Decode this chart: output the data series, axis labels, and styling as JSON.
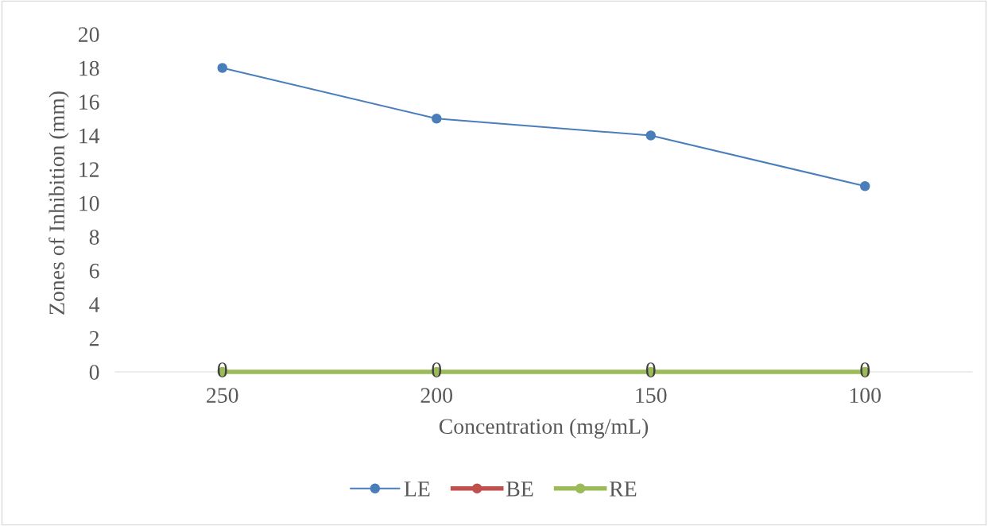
{
  "chart_data": {
    "type": "line",
    "xlabel": "Concentration (mg/mL)",
    "ylabel": "Zones of Inhibition (mm)",
    "categories": [
      "250",
      "200",
      "150",
      "100"
    ],
    "series": [
      {
        "name": "LE",
        "color": "#4a7ebb",
        "values": [
          18,
          15,
          14,
          11
        ]
      },
      {
        "name": "BE",
        "color": "#c0504d",
        "values": [
          null,
          null,
          null,
          null
        ]
      },
      {
        "name": "RE",
        "color": "#9bbb59",
        "values": [
          0,
          0,
          0,
          0
        ],
        "value_labels": [
          "0",
          "0",
          "0",
          "0"
        ]
      }
    ],
    "ylim": [
      0,
      20
    ],
    "yticks": [
      0,
      2,
      4,
      6,
      8,
      10,
      12,
      14,
      16,
      18,
      20
    ],
    "grid": false,
    "legend": "bottom",
    "marker": "circle",
    "line_style": "solid"
  }
}
